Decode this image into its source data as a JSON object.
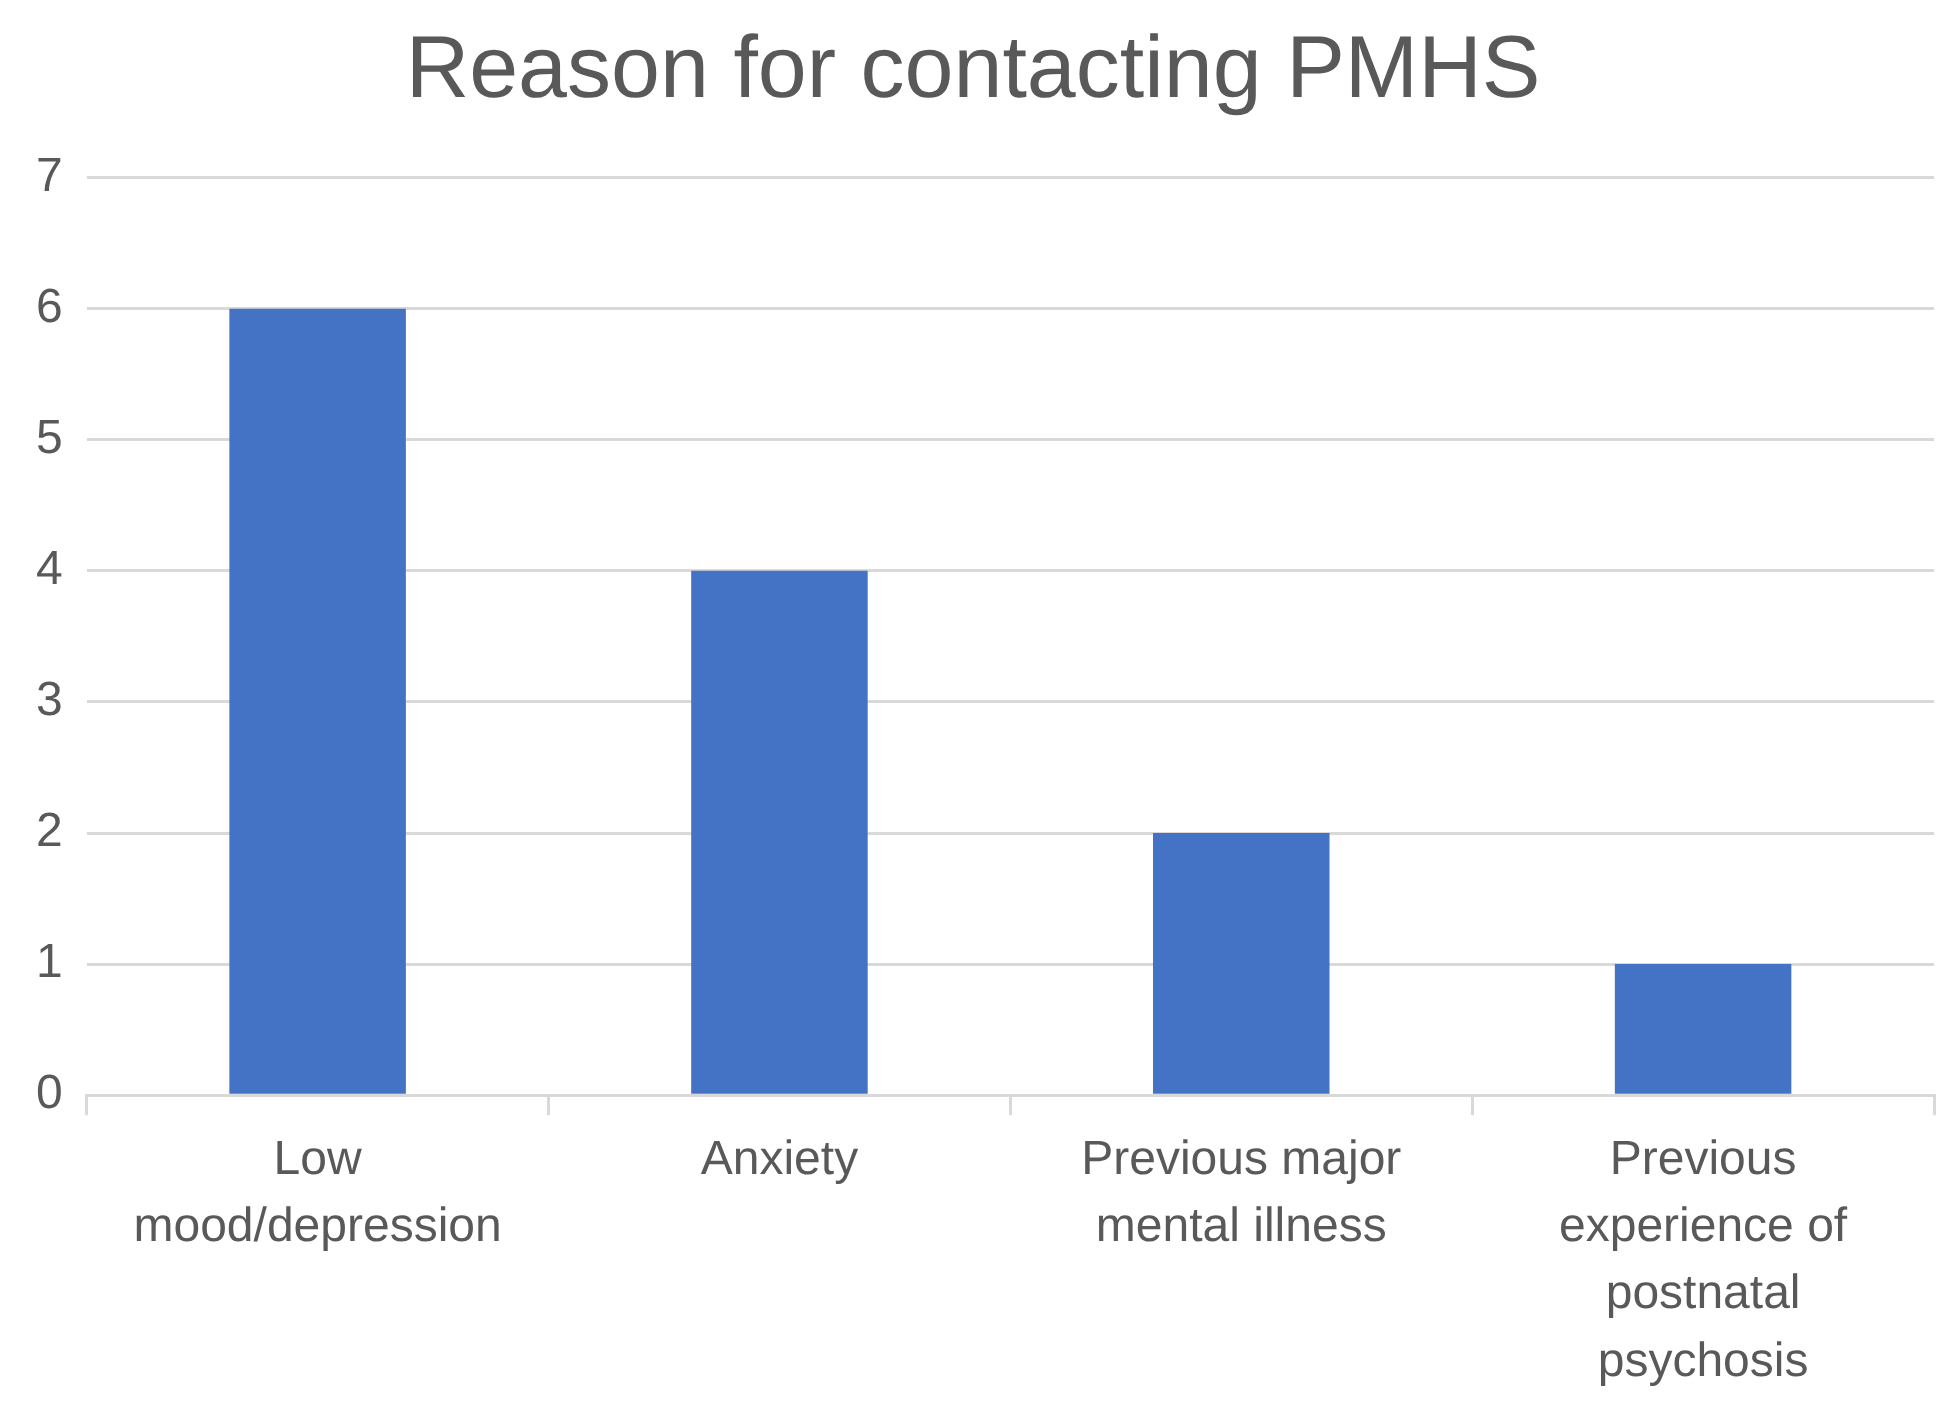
{
  "chart_data": {
    "type": "bar",
    "title": "Reason for contacting PMHS",
    "categories": [
      "Low mood/depression",
      "Anxiety",
      "Previous major mental illness",
      "Previous experience of postnatal psychosis"
    ],
    "values": [
      6,
      4,
      2,
      1
    ],
    "color": "#4472c4",
    "ylim": [
      0,
      7
    ],
    "yticks": [
      0,
      1,
      2,
      3,
      4,
      5,
      6,
      7
    ],
    "grid": "y"
  }
}
